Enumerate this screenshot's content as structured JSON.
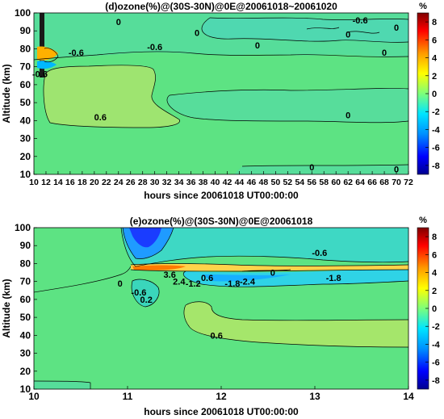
{
  "chart_data": [
    {
      "type": "heatmap",
      "title": "(d)ozone(%)@(30S-30N)@0E@20061018~20061020",
      "xlabel": "hours since 20061018 UT00:00:00",
      "ylabel": "Altitude (km)",
      "xlim": [
        10,
        72
      ],
      "ylim": [
        10,
        100
      ],
      "xticks": [
        "10",
        "12",
        "14",
        "16",
        "18",
        "20",
        "22",
        "24",
        "26",
        "28",
        "30",
        "32",
        "34",
        "36",
        "38",
        "40",
        "42",
        "44",
        "46",
        "48",
        "50",
        "52",
        "54",
        "56",
        "58",
        "60",
        "62",
        "64",
        "66",
        "68",
        "70",
        "72"
      ],
      "yticks": [
        "10",
        "20",
        "30",
        "40",
        "50",
        "60",
        "70",
        "80",
        "90",
        "100"
      ],
      "colorbar": {
        "unit": "%",
        "min": -9,
        "max": 9,
        "ticks": [
          "8",
          "6",
          "4",
          "2",
          "0",
          "-2",
          "-4",
          "-6",
          "-8"
        ]
      },
      "contour_labels": [
        {
          "text": "0",
          "x": 24,
          "y": 95
        },
        {
          "text": "-0.6",
          "x": 30,
          "y": 81
        },
        {
          "text": "0",
          "x": 37,
          "y": 89
        },
        {
          "text": "0",
          "x": 47,
          "y": 82
        },
        {
          "text": "-0.6",
          "x": 64,
          "y": 96
        },
        {
          "text": "0",
          "x": 70,
          "y": 92
        },
        {
          "text": "0",
          "x": 68,
          "y": 78
        },
        {
          "text": "0",
          "x": 62,
          "y": 88
        },
        {
          "text": "-0.6",
          "x": 17,
          "y": 78
        },
        {
          "text": "-0.6",
          "x": 11,
          "y": 66
        },
        {
          "text": "0.6",
          "x": 21,
          "y": 42
        },
        {
          "text": "0",
          "x": 62,
          "y": 43
        },
        {
          "text": "0",
          "x": 56,
          "y": 14
        },
        {
          "text": "0",
          "x": 70,
          "y": 13
        }
      ]
    },
    {
      "type": "heatmap",
      "title": "(e)ozone(%)@(30S-30N)@0E@20061018",
      "xlabel": "hours since 20061018 UT00:00:00",
      "ylabel": "Altitude (km)",
      "xlim": [
        10,
        14
      ],
      "ylim": [
        10,
        100
      ],
      "xticks": [
        "10",
        "11",
        "12",
        "13",
        "14"
      ],
      "yticks": [
        "10",
        "20",
        "30",
        "40",
        "50",
        "60",
        "70",
        "80",
        "90",
        "100"
      ],
      "colorbar": {
        "unit": "%",
        "min": -9,
        "max": 9,
        "ticks": [
          "8",
          "6",
          "4",
          "2",
          "0",
          "-2",
          "-4",
          "-6",
          "-8"
        ]
      },
      "contour_labels": [
        {
          "text": "-0.6",
          "x": 13.05,
          "y": 86
        },
        {
          "text": "0",
          "x": 12.55,
          "y": 75
        },
        {
          "text": "-1.8",
          "x": 13.2,
          "y": 72
        },
        {
          "text": "0",
          "x": 10.92,
          "y": 69
        },
        {
          "text": "3.6",
          "x": 11.45,
          "y": 74
        },
        {
          "text": "2.4",
          "x": 11.55,
          "y": 70
        },
        {
          "text": "-1.2",
          "x": 11.7,
          "y": 69
        },
        {
          "text": "0.6",
          "x": 11.85,
          "y": 72
        },
        {
          "text": "-1.8",
          "x": 12.12,
          "y": 69
        },
        {
          "text": "-2.4",
          "x": 12.28,
          "y": 70
        },
        {
          "text": "-0.6",
          "x": 11.12,
          "y": 64
        },
        {
          "text": "0.2",
          "x": 11.2,
          "y": 60
        },
        {
          "text": "0.6",
          "x": 11.95,
          "y": 40
        }
      ]
    }
  ]
}
